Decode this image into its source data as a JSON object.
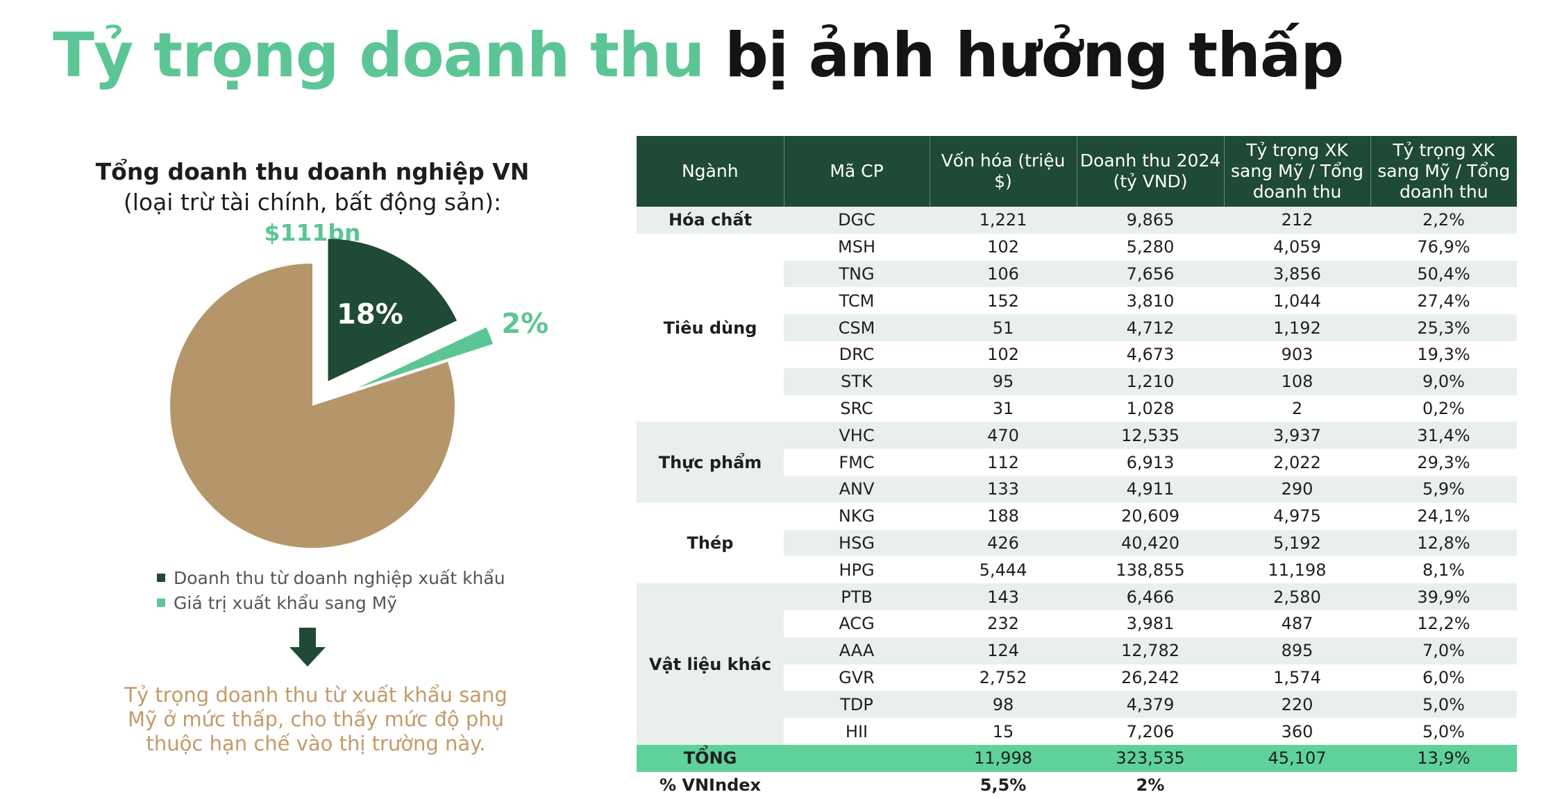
{
  "title": {
    "part1": "Tỷ trọng doanh thu",
    "part2": "bị ảnh hưởng thấp"
  },
  "colors": {
    "accent": "#5cc595",
    "dark_green": "#1f4a35",
    "tan": "#b5966a",
    "note": "#c49a68"
  },
  "chart_data": {
    "type": "pie",
    "title_bold": "Tổng doanh thu doanh nghiệp VN",
    "title_rest": " (loại trừ tài chính, bất động sản): ",
    "title_amount": "$111bn",
    "slices": [
      {
        "label": "Doanh thu từ doanh nghiệp xuất khẩu",
        "value": 18,
        "data_label": "18%",
        "color": "#1f4a35"
      },
      {
        "label": "Giá trị xuất khẩu sang Mỹ",
        "value": 2,
        "data_label": "2%",
        "color": "#5cc595"
      },
      {
        "label": "",
        "value": 80,
        "color": "#b5966a"
      }
    ],
    "legend": [
      "Doanh thu từ doanh nghiệp xuất khẩu",
      "Giá trị xuất khẩu sang Mỹ"
    ]
  },
  "note": "Tỷ trọng doanh thu từ xuất khẩu sang Mỹ ở mức thấp, cho thấy mức độ phụ thuộc hạn chế vào thị trường này.",
  "table": {
    "headers": [
      "Ngành",
      "Mã CP",
      "Vốn hóa (triệu $)",
      "Doanh thu 2024 (tỷ VND)",
      "Tỷ trọng XK sang Mỹ / Tổng doanh thu",
      "Tỷ trọng XK sang Mỹ / Tổng doanh thu"
    ],
    "groups": [
      {
        "sector": "Hóa chất",
        "rows": [
          [
            "DGC",
            "1,221",
            "9,865",
            "212",
            "2,2%"
          ]
        ]
      },
      {
        "sector": "Tiêu dùng",
        "rows": [
          [
            "MSH",
            "102",
            "5,280",
            "4,059",
            "76,9%"
          ],
          [
            "TNG",
            "106",
            "7,656",
            "3,856",
            "50,4%"
          ],
          [
            "TCM",
            "152",
            "3,810",
            "1,044",
            "27,4%"
          ],
          [
            "CSM",
            "51",
            "4,712",
            "1,192",
            "25,3%"
          ],
          [
            "DRC",
            "102",
            "4,673",
            "903",
            "19,3%"
          ],
          [
            "STK",
            "95",
            "1,210",
            "108",
            "9,0%"
          ],
          [
            "SRC",
            "31",
            "1,028",
            "2",
            "0,2%"
          ]
        ]
      },
      {
        "sector": "Thực phẩm",
        "rows": [
          [
            "VHC",
            "470",
            "12,535",
            "3,937",
            "31,4%"
          ],
          [
            "FMC",
            "112",
            "6,913",
            "2,022",
            "29,3%"
          ],
          [
            "ANV",
            "133",
            "4,911",
            "290",
            "5,9%"
          ]
        ]
      },
      {
        "sector": "Thép",
        "rows": [
          [
            "NKG",
            "188",
            "20,609",
            "4,975",
            "24,1%"
          ],
          [
            "HSG",
            "426",
            "40,420",
            "5,192",
            "12,8%"
          ],
          [
            "HPG",
            "5,444",
            "138,855",
            "11,198",
            "8,1%"
          ]
        ]
      },
      {
        "sector": "Vật liệu khác",
        "rows": [
          [
            "PTB",
            "143",
            "6,466",
            "2,580",
            "39,9%"
          ],
          [
            "ACG",
            "232",
            "3,981",
            "487",
            "12,2%"
          ],
          [
            "AAA",
            "124",
            "12,782",
            "895",
            "7,0%"
          ],
          [
            "GVR",
            "2,752",
            "26,242",
            "1,574",
            "6,0%"
          ],
          [
            "TDP",
            "98",
            "4,379",
            "220",
            "5,0%"
          ],
          [
            "HII",
            "15",
            "7,206",
            "360",
            "5,0%"
          ]
        ]
      }
    ],
    "total": [
      "TỔNG",
      "",
      "11,998",
      "323,535",
      "45,107",
      "13,9%"
    ],
    "vnindex": [
      "% VNIndex",
      "",
      "5,5%",
      "2%",
      "",
      ""
    ]
  }
}
